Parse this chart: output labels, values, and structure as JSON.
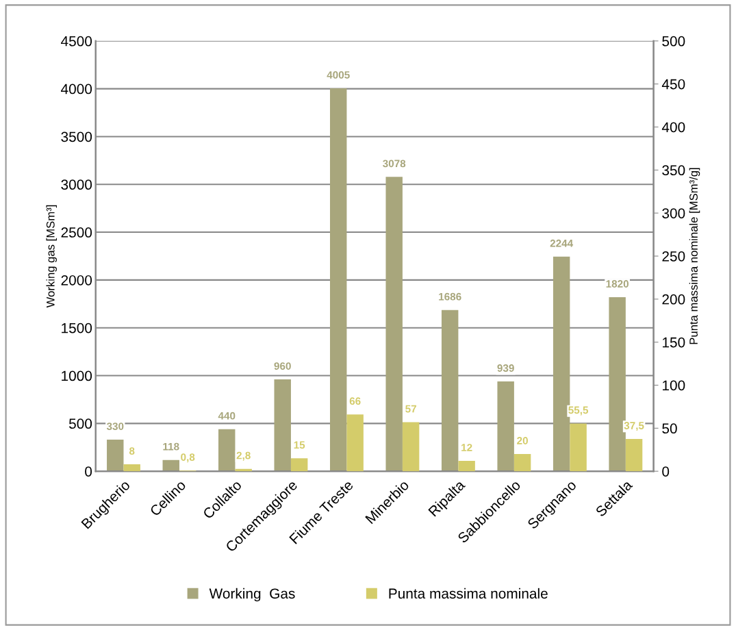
{
  "chart_data": {
    "type": "bar",
    "categories": [
      "Brugherio",
      "Cellino",
      "Collalto",
      "Cortemaggiore",
      "Fiume Treste",
      "Minerbio",
      "Ripalta",
      "Sabbioncello",
      "Sergnano",
      "Settala"
    ],
    "series": [
      {
        "name": "Working  Gas",
        "color": "#a8a67c",
        "values": [
          330,
          118,
          440,
          960,
          4005,
          3078,
          1686,
          939,
          2244,
          1820
        ],
        "value_labels": [
          "330",
          "118",
          "440",
          "960",
          "4005",
          "3078",
          "1686",
          "939",
          "2244",
          "1820"
        ]
      },
      {
        "name": "Punta massima nominale",
        "color": "#d4cc6a",
        "axis": "y2",
        "values": [
          8,
          0.8,
          2.8,
          15,
          66,
          57,
          12,
          20,
          55.5,
          37.5
        ],
        "value_labels": [
          "8",
          "0,8",
          "2,8",
          "15",
          "66",
          "57",
          "12",
          "20",
          "55,5",
          "37,5"
        ]
      }
    ],
    "ylabel": "Working gas [MSm³]",
    "y2label": "Punta massima nominale [MSm³/g]",
    "ylim": [
      0,
      4500
    ],
    "yticks": [
      0,
      500,
      1000,
      1500,
      2000,
      2500,
      3000,
      3500,
      4000,
      4500
    ],
    "y2lim": [
      0,
      500
    ],
    "y2ticks": [
      0,
      50,
      100,
      150,
      200,
      250,
      300,
      350,
      400,
      450,
      500
    ],
    "grid": "y",
    "legend": "bottom"
  }
}
